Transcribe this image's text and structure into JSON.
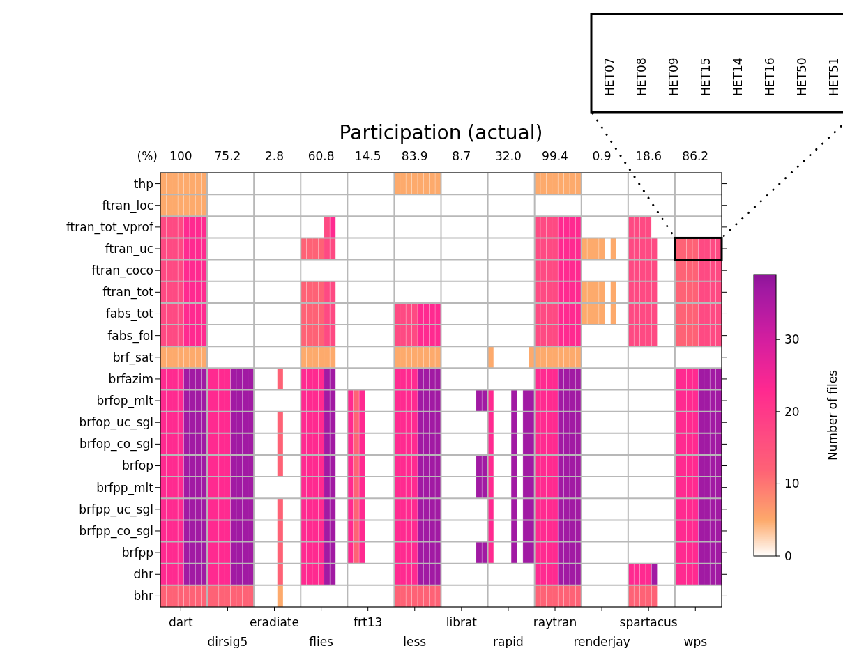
{
  "chart_data": {
    "type": "heatmap",
    "title": "Participation (actual)",
    "clabel": "Number of files",
    "categories": [
      null,
      null,
      null,
      "dart",
      null,
      null,
      null,
      null,
      null,
      null,
      null,
      "dirsig5",
      null,
      null,
      null,
      null,
      null,
      null,
      null,
      "eradiate",
      null,
      null,
      null,
      null,
      null,
      null,
      null,
      "flies",
      null,
      null,
      null,
      null,
      null,
      null,
      null,
      "frt13",
      null,
      null,
      null,
      null,
      null,
      null,
      null,
      "less",
      null,
      null,
      null,
      null,
      null,
      null,
      null,
      "librat",
      null,
      null,
      null,
      null,
      null,
      null,
      null,
      "rapid",
      null,
      null,
      null,
      null,
      null,
      null,
      null,
      "raytran",
      null,
      null,
      null,
      null,
      null,
      null,
      null,
      "renderjay",
      null,
      null,
      null,
      null,
      null,
      null,
      null,
      "spartacus",
      null,
      null,
      null,
      null,
      null,
      null,
      null,
      "wps",
      null,
      null,
      null,
      null
    ],
    "y_categories": [
      "thp",
      "ftran_loc",
      "ftran_tot_vprof",
      "ftran_uc",
      "ftran_coco",
      "ftran_tot",
      "fabs_tot",
      "fabs_fol",
      "brf_sat",
      "brfazim",
      "brfop_mlt",
      "brfop_uc_sgl",
      "brfop_co_sgl",
      "brfop",
      "brfpp_mlt",
      "brfpp_uc_sgl",
      "brfpp_co_sgl",
      "brfpp",
      "dhr",
      "bhr"
    ],
    "cells": [
      [
        5,
        5,
        5,
        5,
        5,
        5,
        5,
        5,
        0,
        0,
        0,
        0,
        0,
        0,
        0,
        0,
        0,
        0,
        0,
        0,
        0,
        0,
        0,
        0,
        0,
        0,
        0,
        0,
        0,
        0,
        0,
        0,
        0,
        0,
        0,
        0,
        0,
        0,
        0,
        0,
        5,
        5,
        5,
        5,
        5,
        5,
        5,
        5,
        0,
        0,
        0,
        0,
        0,
        0,
        0,
        0,
        0,
        0,
        0,
        0,
        0,
        0,
        0,
        0,
        5,
        5,
        5,
        5,
        5,
        5,
        5,
        5,
        0,
        0,
        0,
        0,
        0,
        0,
        0,
        0,
        0,
        0,
        0,
        0,
        0,
        0,
        0,
        0,
        0,
        0,
        0,
        0,
        0,
        0,
        0,
        0
      ],
      [
        5,
        5,
        5,
        5,
        5,
        5,
        5,
        5,
        0,
        0,
        0,
        0,
        0,
        0,
        0,
        0,
        0,
        0,
        0,
        0,
        0,
        0,
        0,
        0,
        0,
        0,
        0,
        0,
        0,
        0,
        0,
        0,
        0,
        0,
        0,
        0,
        0,
        0,
        0,
        0,
        0,
        0,
        0,
        0,
        0,
        0,
        0,
        0,
        0,
        0,
        0,
        0,
        0,
        0,
        0,
        0,
        0,
        0,
        0,
        0,
        0,
        0,
        0,
        0,
        0,
        0,
        0,
        0,
        0,
        0,
        0,
        0,
        0,
        0,
        0,
        0,
        0,
        0,
        0,
        0,
        0,
        0,
        0,
        0,
        0,
        0,
        0,
        0,
        0,
        0,
        0,
        0,
        0,
        0,
        0,
        0
      ],
      [
        17,
        17,
        17,
        17,
        23,
        23,
        23,
        23,
        0,
        0,
        0,
        0,
        0,
        0,
        0,
        0,
        0,
        0,
        0,
        0,
        0,
        0,
        0,
        0,
        0,
        0,
        0,
        0,
        17,
        23,
        0,
        0,
        0,
        0,
        0,
        0,
        0,
        0,
        0,
        0,
        0,
        0,
        0,
        0,
        0,
        0,
        0,
        0,
        0,
        0,
        0,
        0,
        0,
        0,
        0,
        0,
        0,
        0,
        0,
        0,
        0,
        0,
        0,
        0,
        17,
        17,
        17,
        17,
        23,
        23,
        23,
        23,
        0,
        0,
        0,
        0,
        0,
        0,
        0,
        0,
        17,
        17,
        17,
        17,
        0,
        0,
        0,
        0,
        0,
        0,
        0,
        0,
        0,
        0,
        0,
        0
      ],
      [
        17,
        17,
        17,
        17,
        23,
        23,
        23,
        23,
        0,
        0,
        0,
        0,
        0,
        0,
        0,
        0,
        0,
        0,
        0,
        0,
        0,
        0,
        0,
        0,
        12,
        12,
        12,
        12,
        17,
        17,
        0,
        0,
        0,
        0,
        0,
        0,
        0,
        0,
        0,
        0,
        0,
        0,
        0,
        0,
        0,
        0,
        0,
        0,
        0,
        0,
        0,
        0,
        0,
        0,
        0,
        0,
        0,
        0,
        0,
        0,
        0,
        0,
        0,
        0,
        17,
        17,
        17,
        17,
        23,
        23,
        23,
        23,
        5,
        5,
        5,
        5,
        0,
        5,
        0,
        0,
        17,
        17,
        17,
        17,
        17,
        0,
        0,
        0,
        12,
        12,
        12,
        12,
        17,
        17,
        17,
        17
      ],
      [
        17,
        17,
        17,
        17,
        23,
        23,
        23,
        23,
        0,
        0,
        0,
        0,
        0,
        0,
        0,
        0,
        0,
        0,
        0,
        0,
        0,
        0,
        0,
        0,
        0,
        0,
        0,
        0,
        0,
        0,
        0,
        0,
        0,
        0,
        0,
        0,
        0,
        0,
        0,
        0,
        0,
        0,
        0,
        0,
        0,
        0,
        0,
        0,
        0,
        0,
        0,
        0,
        0,
        0,
        0,
        0,
        0,
        0,
        0,
        0,
        0,
        0,
        0,
        0,
        17,
        17,
        17,
        17,
        23,
        23,
        23,
        23,
        0,
        0,
        0,
        0,
        0,
        0,
        0,
        0,
        17,
        17,
        17,
        17,
        17,
        0,
        0,
        0,
        12,
        12,
        12,
        12,
        17,
        17,
        17,
        17
      ],
      [
        17,
        17,
        17,
        17,
        23,
        23,
        23,
        23,
        0,
        0,
        0,
        0,
        0,
        0,
        0,
        0,
        0,
        0,
        0,
        0,
        0,
        0,
        0,
        0,
        12,
        12,
        12,
        12,
        17,
        17,
        0,
        0,
        0,
        0,
        0,
        0,
        0,
        0,
        0,
        0,
        0,
        0,
        0,
        0,
        0,
        0,
        0,
        0,
        0,
        0,
        0,
        0,
        0,
        0,
        0,
        0,
        0,
        0,
        0,
        0,
        0,
        0,
        0,
        0,
        17,
        17,
        17,
        17,
        23,
        23,
        23,
        23,
        5,
        5,
        5,
        5,
        0,
        5,
        0,
        0,
        17,
        17,
        17,
        17,
        17,
        0,
        0,
        0,
        12,
        12,
        12,
        12,
        17,
        17,
        17,
        17
      ],
      [
        17,
        17,
        17,
        17,
        23,
        23,
        23,
        23,
        0,
        0,
        0,
        0,
        0,
        0,
        0,
        0,
        0,
        0,
        0,
        0,
        0,
        0,
        0,
        0,
        12,
        12,
        12,
        12,
        17,
        17,
        0,
        0,
        0,
        0,
        0,
        0,
        0,
        0,
        0,
        0,
        17,
        17,
        17,
        17,
        23,
        23,
        23,
        23,
        0,
        0,
        0,
        0,
        0,
        0,
        0,
        0,
        0,
        0,
        0,
        0,
        0,
        0,
        0,
        0,
        17,
        17,
        17,
        17,
        23,
        23,
        23,
        23,
        5,
        5,
        5,
        5,
        0,
        5,
        0,
        0,
        17,
        17,
        17,
        17,
        17,
        0,
        0,
        0,
        12,
        12,
        12,
        12,
        17,
        17,
        17,
        17
      ],
      [
        17,
        17,
        17,
        17,
        23,
        23,
        23,
        23,
        0,
        0,
        0,
        0,
        0,
        0,
        0,
        0,
        0,
        0,
        0,
        0,
        0,
        0,
        0,
        0,
        12,
        12,
        12,
        12,
        17,
        17,
        0,
        0,
        0,
        0,
        0,
        0,
        0,
        0,
        0,
        0,
        17,
        17,
        17,
        17,
        23,
        23,
        23,
        23,
        0,
        0,
        0,
        0,
        0,
        0,
        0,
        0,
        0,
        0,
        0,
        0,
        0,
        0,
        0,
        0,
        17,
        17,
        17,
        17,
        23,
        23,
        23,
        23,
        0,
        0,
        0,
        0,
        0,
        0,
        0,
        0,
        17,
        17,
        17,
        17,
        17,
        0,
        0,
        0,
        12,
        12,
        12,
        12,
        17,
        17,
        17,
        17
      ],
      [
        5,
        5,
        5,
        5,
        5,
        5,
        5,
        5,
        0,
        0,
        0,
        0,
        0,
        0,
        0,
        0,
        0,
        0,
        0,
        0,
        0,
        0,
        0,
        0,
        5,
        5,
        5,
        5,
        5,
        5,
        0,
        0,
        0,
        0,
        0,
        0,
        0,
        0,
        0,
        0,
        5,
        5,
        5,
        5,
        5,
        5,
        5,
        5,
        0,
        0,
        0,
        0,
        0,
        0,
        0,
        0,
        5,
        0,
        0,
        0,
        0,
        0,
        0,
        5,
        5,
        5,
        5,
        5,
        5,
        5,
        5,
        5,
        0,
        0,
        0,
        0,
        0,
        0,
        0,
        0,
        0,
        0,
        0,
        0,
        0,
        0,
        0,
        0,
        0,
        0,
        0,
        0,
        0,
        0,
        0,
        0
      ],
      [
        23,
        23,
        23,
        23,
        37,
        37,
        37,
        37,
        23,
        23,
        23,
        23,
        37,
        37,
        37,
        37,
        0,
        0,
        0,
        0,
        12,
        0,
        0,
        0,
        23,
        23,
        23,
        23,
        37,
        37,
        0,
        0,
        0,
        0,
        0,
        0,
        0,
        0,
        0,
        0,
        23,
        23,
        23,
        23,
        37,
        37,
        37,
        37,
        0,
        0,
        0,
        0,
        0,
        0,
        0,
        0,
        0,
        0,
        0,
        0,
        0,
        0,
        0,
        0,
        23,
        23,
        23,
        23,
        37,
        37,
        37,
        37,
        0,
        0,
        0,
        0,
        0,
        0,
        0,
        0,
        0,
        0,
        0,
        0,
        0,
        0,
        0,
        0,
        23,
        23,
        23,
        23,
        37,
        37,
        37,
        37
      ],
      [
        23,
        23,
        23,
        23,
        37,
        37,
        37,
        37,
        23,
        23,
        23,
        23,
        37,
        37,
        37,
        37,
        0,
        0,
        0,
        0,
        0,
        0,
        0,
        0,
        23,
        23,
        23,
        23,
        37,
        37,
        0,
        0,
        23,
        12,
        23,
        0,
        0,
        0,
        0,
        0,
        23,
        23,
        23,
        23,
        37,
        37,
        37,
        37,
        0,
        0,
        0,
        0,
        0,
        0,
        37,
        37,
        23,
        0,
        0,
        0,
        37,
        0,
        37,
        37,
        23,
        23,
        23,
        23,
        37,
        37,
        37,
        37,
        0,
        0,
        0,
        0,
        0,
        0,
        0,
        0,
        0,
        0,
        0,
        0,
        0,
        0,
        0,
        0,
        23,
        23,
        23,
        23,
        37,
        37,
        37,
        37
      ],
      [
        23,
        23,
        23,
        23,
        37,
        37,
        37,
        37,
        23,
        23,
        23,
        23,
        37,
        37,
        37,
        37,
        0,
        0,
        0,
        0,
        12,
        0,
        0,
        0,
        23,
        23,
        23,
        23,
        37,
        37,
        0,
        0,
        23,
        12,
        23,
        0,
        0,
        0,
        0,
        0,
        23,
        23,
        23,
        23,
        37,
        37,
        37,
        37,
        0,
        0,
        0,
        0,
        0,
        0,
        0,
        0,
        23,
        0,
        0,
        0,
        37,
        0,
        37,
        37,
        23,
        23,
        23,
        23,
        37,
        37,
        37,
        37,
        0,
        0,
        0,
        0,
        0,
        0,
        0,
        0,
        0,
        0,
        0,
        0,
        0,
        0,
        0,
        0,
        23,
        23,
        23,
        23,
        37,
        37,
        37,
        37
      ],
      [
        23,
        23,
        23,
        23,
        37,
        37,
        37,
        37,
        23,
        23,
        23,
        23,
        37,
        37,
        37,
        37,
        0,
        0,
        0,
        0,
        12,
        0,
        0,
        0,
        23,
        23,
        23,
        23,
        37,
        37,
        0,
        0,
        23,
        12,
        23,
        0,
        0,
        0,
        0,
        0,
        23,
        23,
        23,
        23,
        37,
        37,
        37,
        37,
        0,
        0,
        0,
        0,
        0,
        0,
        0,
        0,
        23,
        0,
        0,
        0,
        37,
        0,
        37,
        37,
        23,
        23,
        23,
        23,
        37,
        37,
        37,
        37,
        0,
        0,
        0,
        0,
        0,
        0,
        0,
        0,
        0,
        0,
        0,
        0,
        0,
        0,
        0,
        0,
        23,
        23,
        23,
        23,
        37,
        37,
        37,
        37
      ],
      [
        23,
        23,
        23,
        23,
        37,
        37,
        37,
        37,
        23,
        23,
        23,
        23,
        37,
        37,
        37,
        37,
        0,
        0,
        0,
        0,
        12,
        0,
        0,
        0,
        23,
        23,
        23,
        23,
        37,
        37,
        0,
        0,
        23,
        12,
        23,
        0,
        0,
        0,
        0,
        0,
        23,
        23,
        23,
        23,
        37,
        37,
        37,
        37,
        0,
        0,
        0,
        0,
        0,
        0,
        37,
        37,
        23,
        0,
        0,
        0,
        37,
        0,
        37,
        37,
        23,
        23,
        23,
        23,
        37,
        37,
        37,
        37,
        0,
        0,
        0,
        0,
        0,
        0,
        0,
        0,
        0,
        0,
        0,
        0,
        0,
        0,
        0,
        0,
        23,
        23,
        23,
        23,
        37,
        37,
        37,
        37
      ],
      [
        23,
        23,
        23,
        23,
        37,
        37,
        37,
        37,
        23,
        23,
        23,
        23,
        37,
        37,
        37,
        37,
        0,
        0,
        0,
        0,
        0,
        0,
        0,
        0,
        23,
        23,
        23,
        23,
        37,
        37,
        0,
        0,
        23,
        12,
        23,
        0,
        0,
        0,
        0,
        0,
        23,
        23,
        23,
        23,
        37,
        37,
        37,
        37,
        0,
        0,
        0,
        0,
        0,
        0,
        37,
        37,
        23,
        0,
        0,
        0,
        37,
        0,
        37,
        37,
        23,
        23,
        23,
        23,
        37,
        37,
        37,
        37,
        0,
        0,
        0,
        0,
        0,
        0,
        0,
        0,
        0,
        0,
        0,
        0,
        0,
        0,
        0,
        0,
        23,
        23,
        23,
        23,
        37,
        37,
        37,
        37
      ],
      [
        23,
        23,
        23,
        23,
        37,
        37,
        37,
        37,
        23,
        23,
        23,
        23,
        37,
        37,
        37,
        37,
        0,
        0,
        0,
        0,
        12,
        0,
        0,
        0,
        23,
        23,
        23,
        23,
        37,
        37,
        0,
        0,
        23,
        12,
        23,
        0,
        0,
        0,
        0,
        0,
        23,
        23,
        23,
        23,
        37,
        37,
        37,
        37,
        0,
        0,
        0,
        0,
        0,
        0,
        0,
        0,
        23,
        0,
        0,
        0,
        37,
        0,
        37,
        37,
        23,
        23,
        23,
        23,
        37,
        37,
        37,
        37,
        0,
        0,
        0,
        0,
        0,
        0,
        0,
        0,
        0,
        0,
        0,
        0,
        0,
        0,
        0,
        0,
        23,
        23,
        23,
        23,
        37,
        37,
        37,
        37
      ],
      [
        23,
        23,
        23,
        23,
        37,
        37,
        37,
        37,
        23,
        23,
        23,
        23,
        37,
        37,
        37,
        37,
        0,
        0,
        0,
        0,
        12,
        0,
        0,
        0,
        23,
        23,
        23,
        23,
        37,
        37,
        0,
        0,
        23,
        12,
        23,
        0,
        0,
        0,
        0,
        0,
        23,
        23,
        23,
        23,
        37,
        37,
        37,
        37,
        0,
        0,
        0,
        0,
        0,
        0,
        0,
        0,
        23,
        0,
        0,
        0,
        37,
        0,
        37,
        37,
        23,
        23,
        23,
        23,
        37,
        37,
        37,
        37,
        0,
        0,
        0,
        0,
        0,
        0,
        0,
        0,
        0,
        0,
        0,
        0,
        0,
        0,
        0,
        0,
        23,
        23,
        23,
        23,
        37,
        37,
        37,
        37
      ],
      [
        23,
        23,
        23,
        23,
        37,
        37,
        37,
        37,
        23,
        23,
        23,
        23,
        37,
        37,
        37,
        37,
        0,
        0,
        0,
        0,
        12,
        0,
        0,
        0,
        23,
        23,
        23,
        23,
        37,
        37,
        0,
        0,
        23,
        12,
        23,
        0,
        0,
        0,
        0,
        0,
        23,
        23,
        23,
        23,
        37,
        37,
        37,
        37,
        0,
        0,
        0,
        0,
        0,
        0,
        37,
        37,
        23,
        0,
        0,
        0,
        37,
        0,
        37,
        37,
        23,
        23,
        23,
        23,
        37,
        37,
        37,
        37,
        0,
        0,
        0,
        0,
        0,
        0,
        0,
        0,
        0,
        0,
        0,
        0,
        0,
        0,
        0,
        0,
        23,
        23,
        23,
        23,
        37,
        37,
        37,
        37
      ],
      [
        23,
        23,
        23,
        23,
        37,
        37,
        37,
        37,
        23,
        23,
        23,
        23,
        37,
        37,
        37,
        37,
        0,
        0,
        0,
        0,
        12,
        0,
        0,
        0,
        23,
        23,
        23,
        23,
        37,
        37,
        0,
        0,
        0,
        0,
        0,
        0,
        0,
        0,
        0,
        0,
        23,
        23,
        23,
        23,
        37,
        37,
        37,
        37,
        0,
        0,
        0,
        0,
        0,
        0,
        0,
        0,
        0,
        0,
        0,
        0,
        0,
        0,
        0,
        0,
        23,
        23,
        23,
        23,
        37,
        37,
        37,
        37,
        0,
        0,
        0,
        0,
        0,
        0,
        0,
        0,
        23,
        23,
        23,
        23,
        37,
        0,
        0,
        0,
        23,
        23,
        23,
        23,
        37,
        37,
        37,
        37
      ],
      [
        12,
        12,
        12,
        12,
        12,
        12,
        12,
        12,
        12,
        12,
        12,
        12,
        12,
        12,
        12,
        12,
        0,
        0,
        0,
        0,
        5,
        0,
        0,
        0,
        0,
        0,
        0,
        0,
        0,
        0,
        0,
        0,
        0,
        0,
        0,
        0,
        0,
        0,
        0,
        0,
        12,
        12,
        12,
        12,
        12,
        12,
        12,
        12,
        0,
        0,
        0,
        0,
        0,
        0,
        0,
        0,
        0,
        0,
        0,
        0,
        0,
        0,
        0,
        0,
        12,
        12,
        12,
        12,
        12,
        12,
        12,
        12,
        0,
        0,
        0,
        0,
        0,
        0,
        0,
        0,
        12,
        12,
        12,
        12,
        12,
        0,
        0,
        0,
        0,
        0,
        0,
        0,
        0,
        0,
        0,
        0
      ]
    ],
    "clim": [
      0,
      39
    ],
    "cticks": [
      0,
      10,
      20,
      30
    ],
    "grid": true,
    "annotations": [
      "(%)",
      "100",
      "75.2",
      "2.8",
      "60.8",
      "14.5",
      "83.9",
      "8.7",
      "32.0",
      "99.4",
      "0.9",
      "18.6",
      "86.2",
      "HET07",
      "HET08",
      "HET09",
      "HET15",
      "HET14",
      "HET16",
      "HET50",
      "HET51"
    ]
  }
}
